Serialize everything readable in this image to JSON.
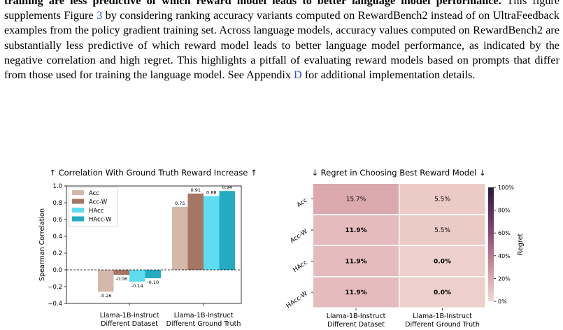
{
  "caption": {
    "bold_lead": "training are less predictive of which reward model leads to better language model performance.",
    "p1": " This figure supplements Figure ",
    "ref_fig": "3",
    "p2": " by considering ranking accuracy variants computed on RewardBench2 instead of on UltraFeedback examples from the policy gradient training set. Across language models, accuracy values computed on RewardBench2 are substantially less predictive of which reward model leads to better language model performance, as indicated by the negative correlation and high regret. This highlights a pitfall of evaluating reward models based on prompts that differ from those used for training the language model. See Appendix ",
    "ref_app": "D",
    "p3": " for additional implementation details."
  },
  "chart_data": [
    {
      "type": "bar",
      "title": "↑  Correlation With Ground Truth Reward Increase  ↑",
      "ylabel": "Spearman Correlation",
      "ylim": [
        -0.4,
        1.0
      ],
      "yticks": [
        "−0.4",
        "−0.2",
        "0.0",
        "0.2",
        "0.4",
        "0.6",
        "0.8",
        "1.0"
      ],
      "yvals": [
        -0.4,
        -0.2,
        0.0,
        0.2,
        0.4,
        0.6,
        0.8,
        1.0
      ],
      "categories": [
        [
          "Llama-1B-Instruct",
          "Different Dataset"
        ],
        [
          "Llama-1B-Instruct",
          "Different Ground Truth"
        ]
      ],
      "series": [
        {
          "name": "Acc",
          "color": "#d4b8ac",
          "values": [
            -0.26,
            0.75
          ],
          "labels": [
            "-0.26",
            "0.75"
          ]
        },
        {
          "name": "Acc-W",
          "color": "#a67665",
          "values": [
            -0.06,
            0.91
          ],
          "labels": [
            "-0.06",
            "0.91"
          ]
        },
        {
          "name": "HAcc",
          "color": "#5fdcef",
          "values": [
            -0.14,
            0.88
          ],
          "labels": [
            "-0.14",
            "0.88"
          ]
        },
        {
          "name": "HAcc-W",
          "color": "#24abc2",
          "values": [
            -0.1,
            0.94
          ],
          "labels": [
            "-0.10",
            "0.94"
          ]
        }
      ],
      "legend": "top-left",
      "zero_line": "dashed"
    },
    {
      "type": "heatmap",
      "title": "↓  Regret in Choosing Best Reward Model  ↓",
      "rows": [
        "Acc",
        "Acc-W",
        "HAcc",
        "HAcc-W"
      ],
      "columns": [
        [
          "Llama-1B-Instruct",
          "Different Dataset"
        ],
        [
          "Llama-1B-Instruct",
          "Different Ground Truth"
        ]
      ],
      "values": [
        [
          15.7,
          5.5
        ],
        [
          11.9,
          5.5
        ],
        [
          11.9,
          0.0
        ],
        [
          11.9,
          0.0
        ]
      ],
      "labels": [
        [
          "15.7%",
          "5.5%"
        ],
        [
          "11.9%",
          "5.5%"
        ],
        [
          "11.9%",
          "0.0%"
        ],
        [
          "11.9%",
          "0.0%"
        ]
      ],
      "bold": [
        [
          false,
          false
        ],
        [
          true,
          false
        ],
        [
          true,
          true
        ],
        [
          true,
          true
        ]
      ],
      "colors": [
        [
          "#dba9ae",
          "#eccbc7"
        ],
        [
          "#e5bbbe",
          "#eccbc7"
        ],
        [
          "#e5bbbe",
          "#edd0cb"
        ],
        [
          "#e5bbbe",
          "#edd0cb"
        ]
      ],
      "colorbar": {
        "label": "Regret",
        "ticks": [
          "100%",
          "80%",
          "60%",
          "40%",
          "20%",
          "0%"
        ],
        "tick_values": [
          100,
          80,
          60,
          40,
          20,
          0
        ],
        "stops": [
          "#2a1a3d",
          "#5a2f5c",
          "#8a4a74",
          "#b9778d",
          "#dcaaaf",
          "#f1dad5"
        ]
      }
    }
  ]
}
